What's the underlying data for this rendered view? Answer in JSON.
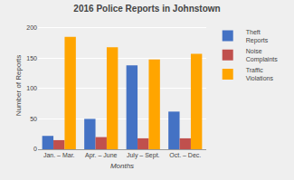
{
  "chart_data": {
    "type": "bar",
    "title": "2016 Police Reports in Johnstown",
    "x_label": "Months",
    "y_label": "Number of Reports",
    "categories": [
      "Jan. – Mar.",
      "Apr. – June",
      "July – Sept.",
      "Oct. – Dec."
    ],
    "series": [
      {
        "name": "Theft\nReports",
        "color": "#4472C4",
        "values": [
          22,
          50,
          138,
          62
        ]
      },
      {
        "name": "Noise\nComplaints",
        "color": "#C0504D",
        "values": [
          15,
          20,
          18,
          18
        ]
      },
      {
        "name": "Traffic\nViolations",
        "color": "#FFA500",
        "values": [
          185,
          168,
          148,
          157
        ]
      }
    ],
    "ylim": [
      0,
      210
    ],
    "yticks": [
      0,
      50,
      100,
      150,
      200
    ],
    "grid": true,
    "legend": "upper right"
  }
}
